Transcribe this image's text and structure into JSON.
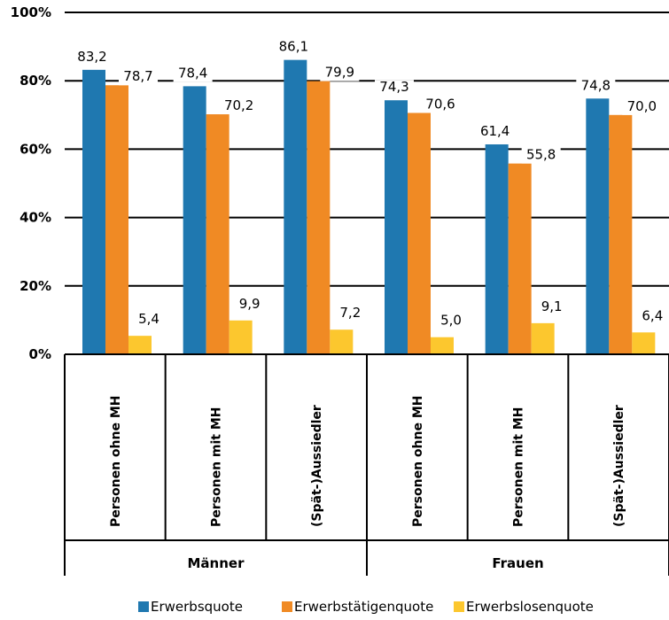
{
  "chart_data": {
    "type": "bar",
    "ylim": [
      0,
      100
    ],
    "yticks": [
      "0%",
      "20%",
      "40%",
      "60%",
      "80%",
      "100%"
    ],
    "grid": true,
    "legend_position": "bottom-right",
    "groups": [
      "Männer",
      "Frauen"
    ],
    "categories": [
      "Personen ohne MH",
      "Personen mit MH",
      "(Spät-)Aussiedler",
      "Personen ohne MH",
      "Personen mit MH",
      "(Spät-)Aussiedler"
    ],
    "series": [
      {
        "name": "Erwerbsquote",
        "color": "#1f78b0",
        "values": [
          83.2,
          78.4,
          86.1,
          74.3,
          61.4,
          74.8
        ],
        "labels": [
          "83,2",
          "78,4",
          "86,1",
          "74,3",
          "61,4",
          "74,8"
        ]
      },
      {
        "name": "Erwerbstätigenquote",
        "color": "#f08a24",
        "values": [
          78.7,
          70.2,
          79.9,
          70.6,
          55.8,
          70.0
        ],
        "labels": [
          "78,7",
          "70,2",
          "79,9",
          "70,6",
          "55,8",
          "70,0"
        ]
      },
      {
        "name": "Erwerbslosenquote",
        "color": "#fcc72e",
        "values": [
          5.4,
          9.9,
          7.2,
          5.0,
          9.1,
          6.4
        ],
        "labels": [
          "5,4",
          "9,9",
          "7,2",
          "5,0",
          "9,1",
          "6,4"
        ]
      }
    ]
  }
}
